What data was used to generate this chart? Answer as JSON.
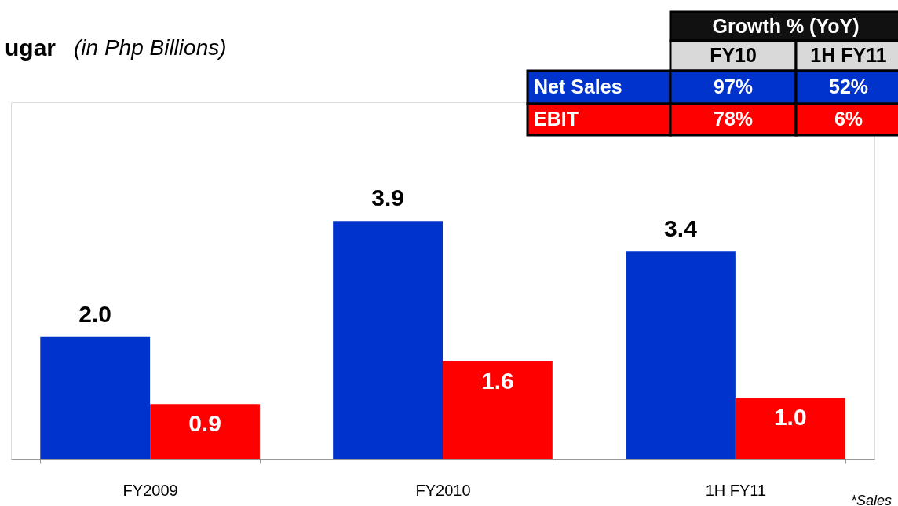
{
  "chart_data": {
    "type": "bar",
    "title": "ugar",
    "subtitle": "(in Php Billions)",
    "categories": [
      "FY2009",
      "FY2010",
      "1H FY11"
    ],
    "series": [
      {
        "name": "Net Sales",
        "color": "#0033cc",
        "values": [
          2.0,
          3.9,
          3.4
        ],
        "value_labels": [
          "2.0",
          "3.9",
          "3.4"
        ]
      },
      {
        "name": "EBIT",
        "color": "#ff0000",
        "values": [
          0.9,
          1.6,
          1.0
        ],
        "value_labels": [
          "0.9",
          "1.6",
          "1.0"
        ]
      }
    ],
    "grid": false,
    "annotations": [
      "Growth % (YoY)",
      "FY10",
      "1H FY11",
      "97%",
      "52%",
      "78%",
      "6%",
      "*Sales"
    ]
  }
}
